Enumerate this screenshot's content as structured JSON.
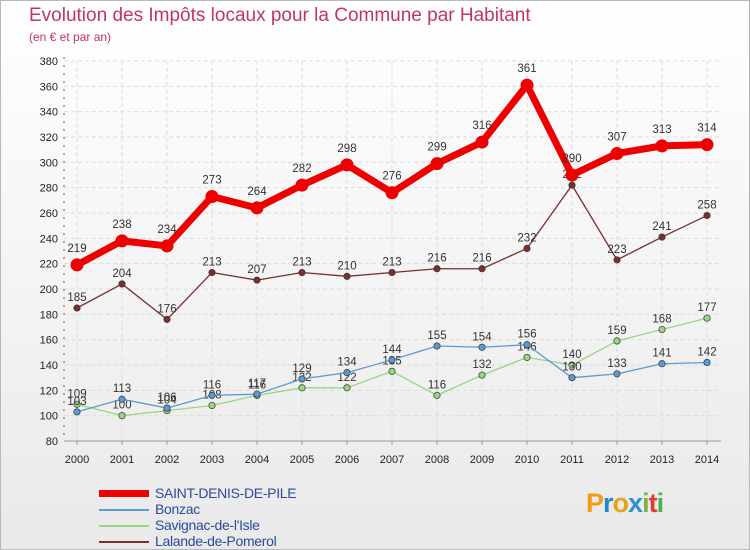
{
  "title": "Evolution des Impôts locaux pour la Commune par Habitant",
  "subtitle": "(en € et par an)",
  "logo": {
    "text": "Proxiti",
    "letters": [
      "P",
      "r",
      "o",
      "x",
      "i",
      "t",
      "i"
    ],
    "colors": [
      "#f39c12",
      "#1e88c8",
      "#e6a21a",
      "#2e8fd1",
      "#7cb342",
      "#e53935",
      "#4caf50"
    ]
  },
  "chart_data": {
    "type": "line",
    "title": "Evolution des Impôts locaux pour la Commune par Habitant",
    "ylabel": "(en € et par an)",
    "xlabel": "",
    "ylim": [
      80,
      380
    ],
    "yticks": [
      80,
      100,
      120,
      140,
      160,
      180,
      200,
      220,
      240,
      260,
      280,
      300,
      320,
      340,
      360,
      380
    ],
    "grid": true,
    "categories": [
      "2000",
      "2001",
      "2002",
      "2003",
      "2004",
      "2005",
      "2006",
      "2007",
      "2008",
      "2009",
      "2010",
      "2011",
      "2012",
      "2013",
      "2014"
    ],
    "series": [
      {
        "name": "Lalande-de-Pomerol",
        "color": "#7a2e2e",
        "values": [
          185,
          204,
          176,
          213,
          207,
          213,
          210,
          213,
          216,
          216,
          232,
          282,
          223,
          241,
          258
        ]
      },
      {
        "name": "Savignac-de-l'Isle",
        "color": "#98d77e",
        "values": [
          109,
          100,
          104,
          108,
          116,
          122,
          122,
          135,
          116,
          132,
          146,
          140,
          159,
          168,
          177
        ]
      },
      {
        "name": "Bonzac",
        "color": "#5b9bd5",
        "values": [
          103,
          113,
          106,
          116,
          117,
          129,
          134,
          144,
          155,
          154,
          156,
          130,
          133,
          141,
          142
        ]
      },
      {
        "name": "SAINT-DENIS-DE-PILE",
        "color": "#ee0000",
        "values": [
          219,
          238,
          234,
          273,
          264,
          282,
          298,
          276,
          299,
          316,
          361,
          290,
          307,
          313,
          314
        ]
      }
    ],
    "legend": [
      "SAINT-DENIS-DE-PILE",
      "Bonzac",
      "Savignac-de-l'Isle",
      "Lalande-de-Pomerol"
    ],
    "legend_position": "bottom-left"
  }
}
